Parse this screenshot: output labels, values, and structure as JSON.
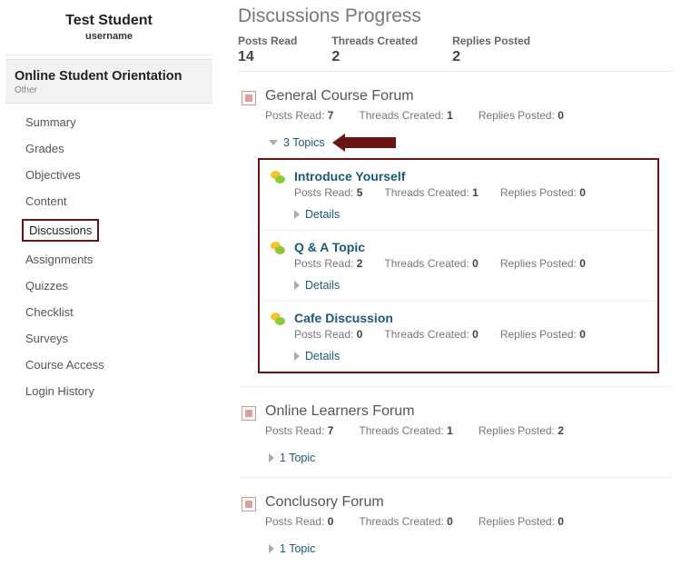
{
  "student": {
    "name": "Test Student",
    "username": "username"
  },
  "course": {
    "title": "Online Student Orientation",
    "subtitle": "Other"
  },
  "nav": {
    "items": [
      {
        "label": "Summary",
        "active": false
      },
      {
        "label": "Grades",
        "active": false
      },
      {
        "label": "Objectives",
        "active": false
      },
      {
        "label": "Content",
        "active": false
      },
      {
        "label": "Discussions",
        "active": true
      },
      {
        "label": "Assignments",
        "active": false
      },
      {
        "label": "Quizzes",
        "active": false
      },
      {
        "label": "Checklist",
        "active": false
      },
      {
        "label": "Surveys",
        "active": false
      },
      {
        "label": "Course Access",
        "active": false
      },
      {
        "label": "Login History",
        "active": false
      }
    ]
  },
  "page": {
    "title": "Discussions Progress"
  },
  "summary": {
    "posts_read_label": "Posts Read",
    "posts_read": "14",
    "threads_created_label": "Threads Created",
    "threads_created": "2",
    "replies_posted_label": "Replies Posted",
    "replies_posted": "2"
  },
  "labels": {
    "posts_read": "Posts Read:",
    "threads_created": "Threads Created:",
    "replies_posted": "Replies Posted:",
    "details": "Details"
  },
  "forums": [
    {
      "title": "General Course Forum",
      "posts_read": "7",
      "threads_created": "1",
      "replies_posted": "0",
      "topics_label": "3 Topics",
      "expanded": true,
      "highlight_arrow": true,
      "topics": [
        {
          "title": "Introduce Yourself",
          "posts_read": "5",
          "threads_created": "1",
          "replies_posted": "0"
        },
        {
          "title": "Q & A Topic",
          "posts_read": "2",
          "threads_created": "0",
          "replies_posted": "0"
        },
        {
          "title": "Cafe Discussion",
          "posts_read": "0",
          "threads_created": "0",
          "replies_posted": "0"
        }
      ]
    },
    {
      "title": "Online Learners Forum",
      "posts_read": "7",
      "threads_created": "1",
      "replies_posted": "2",
      "topics_label": "1 Topic",
      "expanded": false
    },
    {
      "title": "Conclusory Forum",
      "posts_read": "0",
      "threads_created": "0",
      "replies_posted": "0",
      "topics_label": "1 Topic",
      "expanded": false
    }
  ],
  "colors": {
    "highlight_border": "#6b1414",
    "link": "#1b5a7a",
    "text_muted": "#777"
  }
}
